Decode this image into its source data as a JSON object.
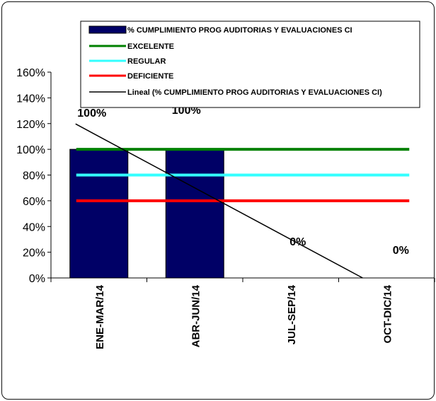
{
  "chart_data": {
    "type": "bar",
    "title": "",
    "xlabel": "",
    "ylabel": "",
    "categories": [
      "ENE-MAR/14",
      "ABR-JUN/14",
      "JUL-SEP/14",
      "OCT-DIC/14"
    ],
    "ylim": [
      0,
      1.6
    ],
    "yticks": [
      "0%",
      "20%",
      "40%",
      "60%",
      "80%",
      "100%",
      "120%",
      "140%",
      "160%"
    ],
    "grid": false,
    "legend_position": "top",
    "series": [
      {
        "name": "% CUMPLIMIENTO PROG AUDITORIAS Y EVALUACIONES CI",
        "kind": "bar",
        "color": "#000066",
        "values": [
          1.0,
          1.0,
          0,
          0
        ],
        "data_labels": [
          "100%",
          "100%",
          "0%",
          "0%"
        ]
      },
      {
        "name": "EXCELENTE",
        "kind": "line",
        "color": "#008000",
        "values": [
          1.0,
          1.0,
          1.0,
          1.0
        ]
      },
      {
        "name": "REGULAR",
        "kind": "line",
        "color": "#33FFFF",
        "values": [
          0.8,
          0.8,
          0.8,
          0.8
        ]
      },
      {
        "name": "DEFICIENTE",
        "kind": "line",
        "color": "#FF0000",
        "values": [
          0.6,
          0.6,
          0.6,
          0.6
        ]
      },
      {
        "name": "Lineal (% CUMPLIMIENTO PROG AUDITORIAS Y EVALUACIONES CI)",
        "kind": "trendline",
        "color": "#000000",
        "values": [
          1.1,
          0.7,
          0.3,
          -0.1
        ]
      }
    ]
  }
}
